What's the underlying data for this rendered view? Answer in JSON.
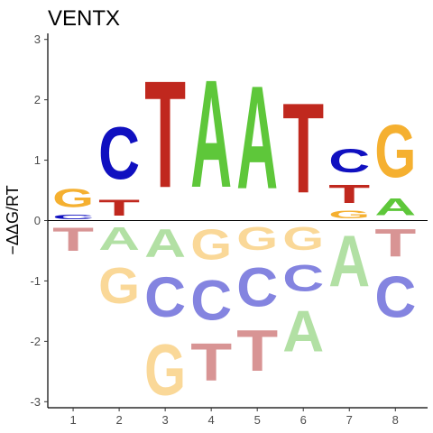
{
  "chart_data": {
    "type": "sequence-logo",
    "title": "VENTX",
    "ylabel": "−ΔΔG/RT",
    "xlabel": "",
    "ylim": [
      -3.1,
      3.1
    ],
    "yticks": [
      -3,
      -2,
      -1,
      0,
      1,
      2,
      3
    ],
    "positions": [
      1,
      2,
      3,
      4,
      5,
      6,
      7,
      8
    ],
    "colors": {
      "A": "#5ec73a",
      "C": "#1010c0",
      "G": "#f5b030",
      "T": "#c0281e",
      "A_neg": "#b2e0a4",
      "C_neg": "#8484e0",
      "G_neg": "#fad898",
      "T_neg": "#d89494"
    },
    "columns": [
      {
        "pos": 1,
        "above": [
          {
            "base": "C",
            "height": 0.13
          },
          {
            "base": "G",
            "height": 0.48
          }
        ],
        "below": [
          {
            "base": "T",
            "height": 0.62
          }
        ]
      },
      {
        "pos": 2,
        "above": [
          {
            "base": "T",
            "height": 0.42
          },
          {
            "base": "C",
            "height": 1.38
          }
        ],
        "below": [
          {
            "base": "A",
            "height": 0.6
          },
          {
            "base": "G",
            "height": 0.95
          }
        ]
      },
      {
        "pos": 3,
        "above": [
          {
            "base": "T",
            "height": 2.83
          }
        ],
        "below": [
          {
            "base": "A",
            "height": 0.75
          },
          {
            "base": "C",
            "height": 1.05
          },
          {
            "base": "G",
            "height": 1.35
          }
        ]
      },
      {
        "pos": 4,
        "above": [
          {
            "base": "A",
            "height": 2.85
          }
        ],
        "below": [
          {
            "base": "G",
            "height": 0.8
          },
          {
            "base": "C",
            "height": 1.05
          },
          {
            "base": "T",
            "height": 1.0
          }
        ]
      },
      {
        "pos": 5,
        "above": [
          {
            "base": "A",
            "height": 2.73
          }
        ],
        "below": [
          {
            "base": "G",
            "height": 0.6
          },
          {
            "base": "C",
            "height": 1.02
          },
          {
            "base": "T",
            "height": 1.08
          }
        ]
      },
      {
        "pos": 6,
        "above": [
          {
            "base": "T",
            "height": 2.38
          }
        ],
        "below": [
          {
            "base": "G",
            "height": 0.6
          },
          {
            "base": "C",
            "height": 0.7
          },
          {
            "base": "A",
            "height": 1.08
          }
        ]
      },
      {
        "pos": 7,
        "above": [
          {
            "base": "G",
            "height": 0.2
          },
          {
            "base": "T",
            "height": 0.48
          },
          {
            "base": "C",
            "height": 0.62
          }
        ],
        "below": [
          {
            "base": "A",
            "height": 1.35
          }
        ]
      },
      {
        "pos": 8,
        "above": [
          {
            "base": "A",
            "height": 0.45
          },
          {
            "base": "G",
            "height": 1.4
          }
        ],
        "below": [
          {
            "base": "T",
            "height": 0.73
          },
          {
            "base": "C",
            "height": 1.08
          }
        ]
      }
    ]
  }
}
